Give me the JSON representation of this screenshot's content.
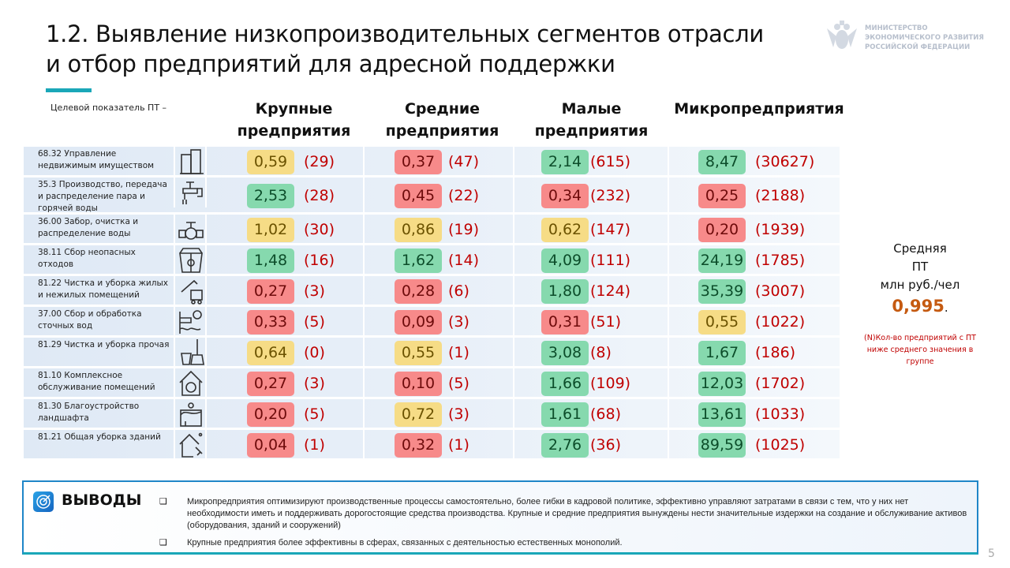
{
  "title": {
    "line1": "1.2. Выявление низкопроизводительных сегментов отрасли",
    "line2": "и отбор предприятий для адресной поддержки"
  },
  "logo": {
    "line1": "МИНИСТЕРСТВО",
    "line2": "ЭКОНОМИЧЕСКОГО РАЗВИТИЯ",
    "line3": "РОССИЙСКОЙ ФЕДЕРАЦИИ"
  },
  "target_label": "Целевой показатель ПТ –",
  "columns": [
    "Крупные предприятия",
    "Средние предприятия",
    "Малые предприятия",
    "Микропредприятия"
  ],
  "colors": {
    "Y": "#f6dc86",
    "R": "#f78a8a",
    "G": "#86d9ae"
  },
  "rows": [
    {
      "label": "68.32 Управление недвижимым имуществом",
      "icon": "buildings-icon",
      "cells": [
        [
          "Y",
          "0,59",
          "(29)"
        ],
        [
          "R",
          "0,37",
          "(47)"
        ],
        [
          "G",
          "2,14",
          "(615)"
        ],
        [
          "G",
          "8,47",
          "(30627)"
        ]
      ]
    },
    {
      "label": "35.3 Производство, передача и распределение пара и горячей воды",
      "icon": "steam-faucet-icon",
      "cells": [
        [
          "G",
          "2,53",
          "(28)"
        ],
        [
          "R",
          "0,45",
          "(22)"
        ],
        [
          "R",
          "0,34",
          "(232)"
        ],
        [
          "R",
          "0,25",
          "(2188)"
        ]
      ]
    },
    {
      "label": "36.00 Забор, очистка и распределение воды",
      "icon": "water-valve-icon",
      "cells": [
        [
          "Y",
          "1,02",
          "(30)"
        ],
        [
          "Y",
          "0,86",
          "(19)"
        ],
        [
          "Y",
          "0,62",
          "(147)"
        ],
        [
          "R",
          "0,20",
          "(1939)"
        ]
      ]
    },
    {
      "label": "38.11 Сбор неопасных отходов",
      "icon": "recycle-bins-icon",
      "cells": [
        [
          "G",
          "1,48",
          "(16)"
        ],
        [
          "G",
          "1,62",
          "(14)"
        ],
        [
          "G",
          "4,09",
          "(111)"
        ],
        [
          "G",
          "24,19",
          "(1785)"
        ]
      ]
    },
    {
      "label": "81.22 Чистка и уборка жилых и нежилых помещений",
      "icon": "pressure-washer-icon",
      "cells": [
        [
          "R",
          "0,27",
          "(3)"
        ],
        [
          "R",
          "0,28",
          "(6)"
        ],
        [
          "G",
          "1,80",
          "(124)"
        ],
        [
          "G",
          "35,39",
          "(3007)"
        ]
      ]
    },
    {
      "label": "37.00 Сбор и обработка сточных вод",
      "icon": "wastewater-icon",
      "cells": [
        [
          "R",
          "0,33",
          "(5)"
        ],
        [
          "R",
          "0,09",
          "(3)"
        ],
        [
          "R",
          "0,31",
          "(51)"
        ],
        [
          "Y",
          "0,55",
          "(1022)"
        ]
      ]
    },
    {
      "label": "81.29 Чистка и уборка прочая",
      "icon": "bucket-broom-icon",
      "cells": [
        [
          "Y",
          "0,64",
          "(0)"
        ],
        [
          "Y",
          "0,55",
          "(1)"
        ],
        [
          "G",
          "3,08",
          "(8)"
        ],
        [
          "G",
          "1,67",
          "(186)"
        ]
      ]
    },
    {
      "label": "81.10 Комплексное обслуживание помещений",
      "icon": "house-service-icon",
      "cells": [
        [
          "R",
          "0,27",
          "(3)"
        ],
        [
          "R",
          "0,10",
          "(5)"
        ],
        [
          "G",
          "1,66",
          "(109)"
        ],
        [
          "G",
          "12,03",
          "(1702)"
        ]
      ]
    },
    {
      "label": "81.30 Благоустройство ландшафта",
      "icon": "landscape-icon",
      "cells": [
        [
          "R",
          "0,20",
          "(5)"
        ],
        [
          "Y",
          "0,72",
          "(3)"
        ],
        [
          "G",
          "1,61",
          "(68)"
        ],
        [
          "G",
          "13,61",
          "(1033)"
        ]
      ]
    },
    {
      "label": "81.21 Общая уборка зданий",
      "icon": "house-cleaning-icon",
      "cells": [
        [
          "R",
          "0,04",
          "(1)"
        ],
        [
          "R",
          "0,32",
          "(1)"
        ],
        [
          "G",
          "2,76",
          "(36)"
        ],
        [
          "G",
          "89,59",
          "(1025)"
        ]
      ]
    }
  ],
  "side": {
    "l1": "Средняя",
    "l2": "ПТ",
    "l3": "млн руб./чел",
    "avg": "0,995",
    "dot": ".",
    "note": "(N)Кол-во предприятий с ПТ ниже среднего значения в группе"
  },
  "conclusions": {
    "title": "ВЫВОДЫ",
    "bullet": "❑",
    "items": [
      "Микропредприятия оптимизируют производственные процессы самостоятельно, более гибки в кадровой политике, эффективно управляют затратами в связи с тем, что у них нет необходимости иметь и поддерживать дорогостоящие средства производства. Крупные и средние предприятия вынуждены нести значительные издержки на создание и обслуживание активов (оборудования, зданий и сооружений)",
      "Крупные предприятия более эффективны в сферах, связанных с деятельностью естественных монополий."
    ]
  },
  "page_number": "5"
}
